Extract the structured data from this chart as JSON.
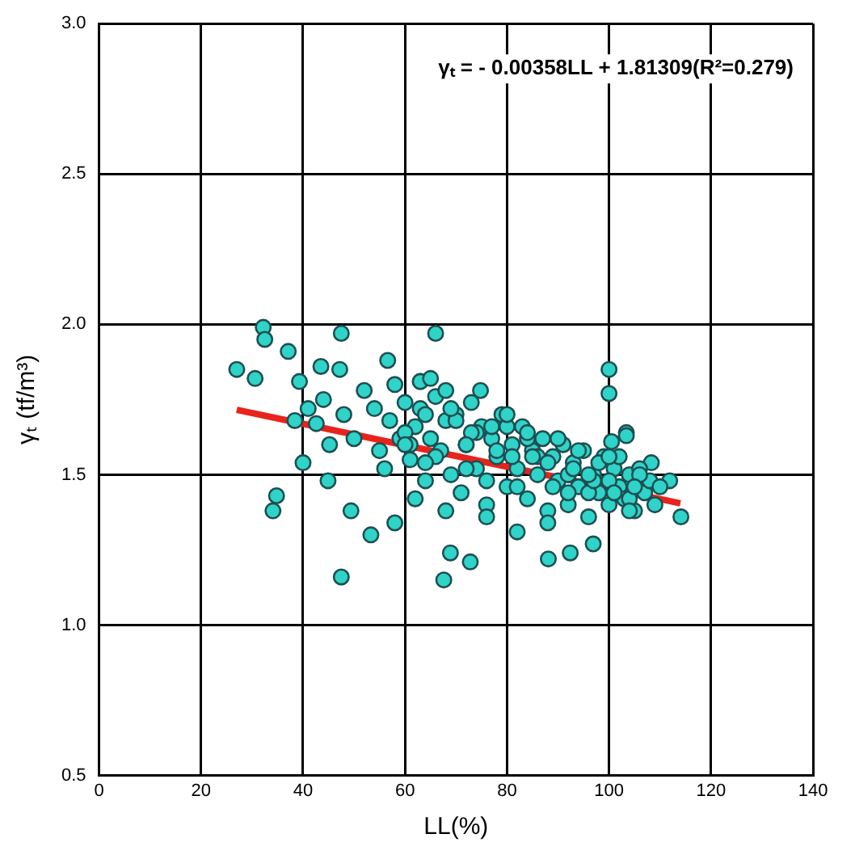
{
  "chart_data": {
    "type": "scatter",
    "xlabel": "LL(%)",
    "ylabel": "γₜ (tf/m³)",
    "annotations": [
      "γₜ = - 0.00358LL + 1.81309(R²=0.279)"
    ],
    "xlim": [
      0,
      140
    ],
    "xticks": [
      0,
      20,
      40,
      60,
      80,
      100,
      120,
      140
    ],
    "ylim": [
      0.5,
      3.0
    ],
    "yticks": [
      {
        "value": 0.5,
        "label": "0.5"
      },
      {
        "value": 1,
        "label": "1.0"
      },
      {
        "value": 1.5,
        "label": "1.5"
      },
      {
        "value": 2,
        "label": "2.0"
      },
      {
        "value": 2.5,
        "label": "2.5"
      },
      {
        "value": 3,
        "label": "3.0"
      }
    ],
    "grid": true,
    "legend": false,
    "marker": "circle",
    "series": [
      {
        "type": "line",
        "color": "#e8231c",
        "marker": "none",
        "x": [
          27,
          114
        ],
        "values": [
          1.716,
          1.405
        ]
      },
      {
        "color": "#2fd3c8",
        "x": [
          32.2,
          32.5,
          37.1,
          27,
          30.6,
          47.5,
          40,
          34.8,
          34.1,
          44.9,
          49.4,
          53.3,
          47.5,
          39.3,
          43.5,
          47.2,
          42.6,
          45.2,
          38.4,
          56.6,
          63,
          66,
          63,
          74.8,
          100,
          100,
          103.4,
          100.5,
          68.9,
          67.6,
          72.8,
          88.1,
          92.4,
          96.9,
          82,
          114.1,
          111.9,
          108.3,
          103.4,
          41,
          44,
          48,
          50,
          52,
          54,
          55,
          57,
          58,
          59,
          60,
          61,
          62,
          63,
          64,
          65,
          66,
          67,
          68,
          69,
          70,
          71,
          72,
          73,
          74,
          75,
          76,
          77,
          78,
          79,
          80,
          81,
          82,
          83,
          84,
          85,
          86,
          87,
          88,
          89,
          90,
          91,
          92,
          93,
          94,
          95,
          96,
          97,
          98,
          99,
          100,
          101,
          102,
          103,
          104,
          105,
          106,
          107,
          108,
          109,
          110,
          58,
          60,
          62,
          64,
          66,
          68,
          70,
          72,
          74,
          76,
          78,
          80,
          82,
          84,
          86,
          88,
          90,
          92,
          94,
          96,
          98,
          100,
          102,
          104,
          106,
          61,
          65,
          69,
          73,
          77,
          81,
          85,
          89,
          93,
          97,
          101,
          105,
          56,
          60,
          64,
          68,
          72,
          76,
          80,
          84,
          88,
          92,
          96,
          100,
          104
        ],
        "values": [
          1.99,
          1.95,
          1.91,
          1.85,
          1.82,
          1.97,
          1.54,
          1.43,
          1.38,
          1.48,
          1.38,
          1.3,
          1.16,
          1.81,
          1.86,
          1.85,
          1.67,
          1.6,
          1.68,
          1.88,
          1.81,
          1.97,
          1.81,
          1.78,
          1.85,
          1.77,
          1.64,
          1.61,
          1.24,
          1.15,
          1.21,
          1.22,
          1.24,
          1.27,
          1.31,
          1.36,
          1.48,
          1.54,
          1.63,
          1.72,
          1.75,
          1.7,
          1.62,
          1.78,
          1.72,
          1.58,
          1.68,
          1.8,
          1.62,
          1.74,
          1.55,
          1.66,
          1.72,
          1.48,
          1.62,
          1.76,
          1.58,
          1.68,
          1.5,
          1.7,
          1.44,
          1.6,
          1.74,
          1.52,
          1.66,
          1.4,
          1.62,
          1.56,
          1.7,
          1.46,
          1.6,
          1.52,
          1.66,
          1.42,
          1.58,
          1.5,
          1.62,
          1.38,
          1.56,
          1.48,
          1.6,
          1.4,
          1.54,
          1.46,
          1.58,
          1.36,
          1.5,
          1.44,
          1.56,
          1.4,
          1.52,
          1.46,
          1.42,
          1.5,
          1.38,
          1.52,
          1.44,
          1.48,
          1.4,
          1.46,
          1.34,
          1.64,
          1.42,
          1.7,
          1.56,
          1.38,
          1.68,
          1.52,
          1.64,
          1.36,
          1.58,
          1.66,
          1.46,
          1.62,
          1.56,
          1.34,
          1.62,
          1.5,
          1.58,
          1.44,
          1.54,
          1.48,
          1.56,
          1.42,
          1.5,
          1.6,
          1.82,
          1.72,
          1.64,
          1.66,
          1.56,
          1.56,
          1.46,
          1.52,
          1.48,
          1.44,
          1.46,
          1.52,
          1.6,
          1.54,
          1.78,
          1.6,
          1.48,
          1.7,
          1.64,
          1.54,
          1.44,
          1.5,
          1.56,
          1.38
        ]
      }
    ]
  }
}
